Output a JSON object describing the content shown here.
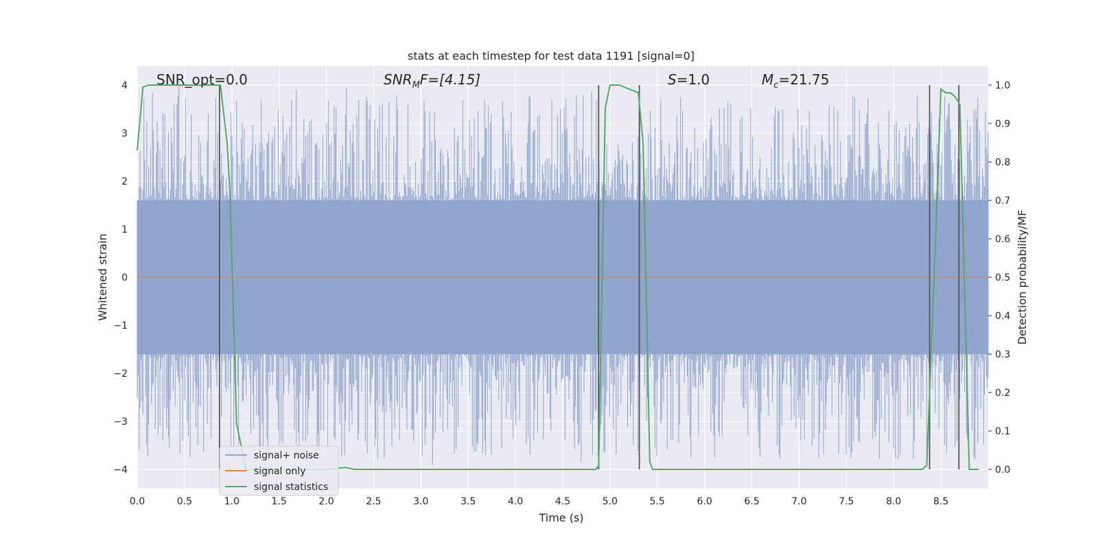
{
  "chart_data": {
    "type": "line",
    "title": "stats at each timestep for test data 1191 [signal=0]",
    "xlabel": "Time (s)",
    "ylabel_left": "Whitened strain",
    "ylabel_right": "Detection probability/MF",
    "xlim": [
      0.0,
      9.0
    ],
    "ylim_left": [
      -4.4,
      4.4
    ],
    "ylim_right": [
      -0.05,
      1.05
    ],
    "x_ticks": [
      "0.0",
      "0.5",
      "1.0",
      "1.5",
      "2.0",
      "2.5",
      "3.0",
      "3.5",
      "4.0",
      "4.5",
      "5.0",
      "5.5",
      "6.0",
      "6.5",
      "7.0",
      "7.5",
      "8.0",
      "8.5"
    ],
    "y_left_ticks": [
      "4",
      "3",
      "2",
      "1",
      "0",
      "−1",
      "−2",
      "−3",
      "−4"
    ],
    "y_right_ticks": [
      "1.0",
      "0.9",
      "0.8",
      "0.7",
      "0.6",
      "0.5",
      "0.4",
      "0.3",
      "0.2",
      "0.1",
      "0.0"
    ],
    "grid": true,
    "legend_position": "lower-left",
    "annotations": {
      "snr_opt": "SNR_opt=0.0",
      "snr_mf": "SNR",
      "snr_mf_sub": "M",
      "snr_mf_rest": "F=[4.15]",
      "s_label": "S",
      "s_rest": "=1.0",
      "mc_label": "M",
      "mc_sub": "c",
      "mc_rest": "=21.75"
    },
    "series": [
      {
        "name": "signal+ noise",
        "color": "#8fa4cc",
        "style": "dense noise, approx. range -4 to 4",
        "envelope": {
          "band_min": -1.6,
          "band_max": 1.6,
          "peak_max": 4.0,
          "peak_min": -4.0
        }
      },
      {
        "name": "signal only",
        "color": "#dd8452",
        "style": "flat at 0 (signal=0)",
        "x": [
          0.0,
          9.0
        ],
        "y": [
          0.0,
          0.0
        ]
      },
      {
        "name": "signal statistics",
        "color": "#55a868",
        "axis": "right",
        "x": [
          0.0,
          0.06,
          0.12,
          0.5,
          0.85,
          0.88,
          0.95,
          0.98,
          1.0,
          1.05,
          1.15,
          1.3,
          2.0,
          2.2,
          2.3,
          4.85,
          4.88,
          4.95,
          5.0,
          5.1,
          5.2,
          5.3,
          5.35,
          5.42,
          5.45,
          5.8,
          6.0,
          8.3,
          8.35,
          8.45,
          8.5,
          8.55,
          8.6,
          8.65,
          8.7,
          8.8,
          8.9
        ],
        "y": [
          0.83,
          0.995,
          1.0,
          1.0,
          1.0,
          1.0,
          0.85,
          0.72,
          0.55,
          0.12,
          0.0,
          0.0,
          0.0,
          0.005,
          0.0,
          0.0,
          0.01,
          0.94,
          1.0,
          1.0,
          0.99,
          0.98,
          0.85,
          0.02,
          0.0,
          0.0,
          0.0,
          0.0,
          0.01,
          0.64,
          0.99,
          0.98,
          0.98,
          0.97,
          0.95,
          0.0,
          0.0
        ]
      }
    ],
    "vertical_lines_x": [
      0.87,
      4.88,
      5.31,
      8.38,
      8.69
    ],
    "vertical_lines_color": "#555555"
  }
}
